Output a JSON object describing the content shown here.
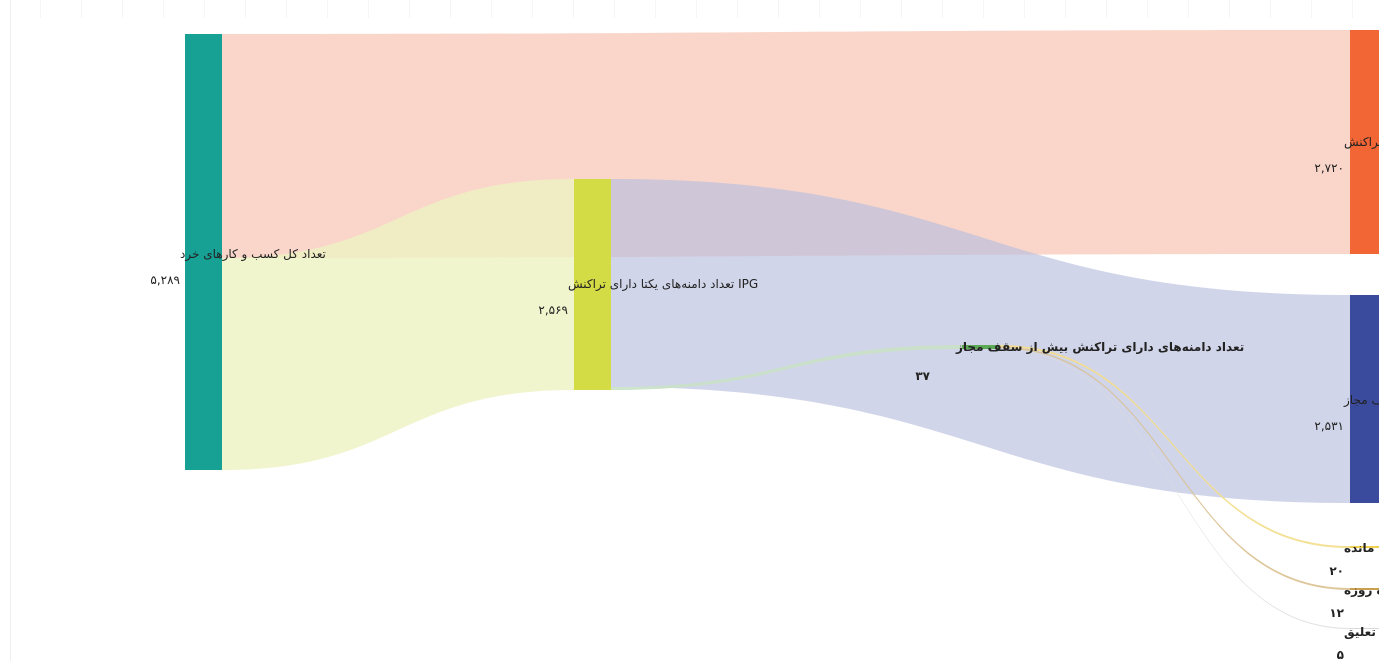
{
  "chart_data": {
    "type": "sankey",
    "nodes": [
      {
        "id": "total",
        "name": "تعداد کل کسب و کارهای خرد",
        "value_label": "۵,۲۸۹",
        "value": 5289,
        "color": "#17a195"
      },
      {
        "id": "ipg_with",
        "name": "IPG تعداد دامنه‌های یکتا دارای تراکنش",
        "value_label": "۲,۵۶۹",
        "value": 2569,
        "color": "#d4dc45"
      },
      {
        "id": "ipg_without",
        "name": "IPG تعداد دامنه‌های یکتا بدون تراکنش",
        "value_label": "۲,۷۲۰",
        "value": 2720,
        "color": "#f26535"
      },
      {
        "id": "over_limit",
        "name": "تعداد دامنه‌های دارای تراکنش بیش از سقف مجاز",
        "value_label": "۳۷",
        "value": 37,
        "color": "#5caa55"
      },
      {
        "id": "under_limit",
        "name": "تعداد دامنه‌های دارای تراکنش کمتر از سقف مجاز",
        "value_label": "۲,۵۳۱",
        "value": 2531,
        "color": "#3a4b9e"
      },
      {
        "id": "suspended",
        "name": "دامنه‌های تعلیق مانده",
        "value_label": "۲۰",
        "value": 20,
        "color": "#f0d050"
      },
      {
        "id": "before",
        "name": "دامنه‌های تبدیل شده به اینماد ستاره دار قبل از اتمام مهلت ده روزه",
        "value_label": "۱۲",
        "value": 12,
        "color": "#c8a050"
      },
      {
        "id": "after",
        "name": "دامنه‌های تبدیل شده به اینماد ستاره دار بعد از تعلیق",
        "value_label": "۵",
        "value": 5,
        "color": "#d9d9d9"
      }
    ],
    "links": [
      {
        "source": "total",
        "target": "ipg_without",
        "value": 2720
      },
      {
        "source": "total",
        "target": "ipg_with",
        "value": 2569
      },
      {
        "source": "ipg_with",
        "target": "under_limit",
        "value": 2531
      },
      {
        "source": "ipg_with",
        "target": "over_limit",
        "value": 37
      },
      {
        "source": "over_limit",
        "target": "suspended",
        "value": 20
      },
      {
        "source": "over_limit",
        "target": "before",
        "value": 12
      },
      {
        "source": "over_limit",
        "target": "after",
        "value": 5
      }
    ]
  }
}
